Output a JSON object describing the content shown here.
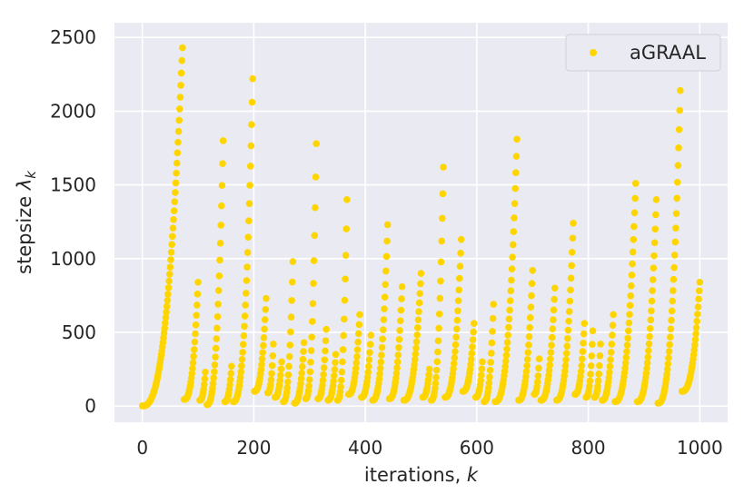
{
  "chart_data": {
    "type": "scatter",
    "xlabel": "iterations, k",
    "ylabel": "stepsize λk",
    "xlim": [
      -50,
      1050
    ],
    "ylim": [
      -110,
      2600
    ],
    "x_ticks": [
      0,
      200,
      400,
      600,
      800,
      1000
    ],
    "y_ticks": [
      0,
      500,
      1000,
      1500,
      2000,
      2500
    ],
    "grid": true,
    "legend_position": "top-right",
    "colors": {
      "series": "#FFD500",
      "background": "#EAEAF2",
      "grid": "#ffffff"
    },
    "series": [
      {
        "name": "aGRAAL",
        "marker": "circle",
        "cycles": [
          {
            "start": 0,
            "peak": 72,
            "ymax": 2430,
            "floor": 1
          },
          {
            "start": 75,
            "peak": 100,
            "ymax": 840,
            "floor": 45
          },
          {
            "start": 103,
            "peak": 113,
            "ymax": 230,
            "floor": 40
          },
          {
            "start": 116,
            "peak": 145,
            "ymax": 1800,
            "floor": 10
          },
          {
            "start": 148,
            "peak": 160,
            "ymax": 270,
            "floor": 30
          },
          {
            "start": 163,
            "peak": 198,
            "ymax": 2220,
            "floor": 30
          },
          {
            "start": 201,
            "peak": 222,
            "ymax": 730,
            "floor": 100
          },
          {
            "start": 225,
            "peak": 235,
            "ymax": 420,
            "floor": 90
          },
          {
            "start": 238,
            "peak": 250,
            "ymax": 300,
            "floor": 60
          },
          {
            "start": 253,
            "peak": 270,
            "ymax": 980,
            "floor": 30
          },
          {
            "start": 273,
            "peak": 290,
            "ymax": 430,
            "floor": 20
          },
          {
            "start": 293,
            "peak": 312,
            "ymax": 1780,
            "floor": 50
          },
          {
            "start": 315,
            "peak": 330,
            "ymax": 520,
            "floor": 50
          },
          {
            "start": 333,
            "peak": 347,
            "ymax": 350,
            "floor": 40
          },
          {
            "start": 350,
            "peak": 367,
            "ymax": 1400,
            "floor": 40
          },
          {
            "start": 370,
            "peak": 390,
            "ymax": 620,
            "floor": 80
          },
          {
            "start": 393,
            "peak": 410,
            "ymax": 480,
            "floor": 60
          },
          {
            "start": 413,
            "peak": 440,
            "ymax": 1230,
            "floor": 40
          },
          {
            "start": 443,
            "peak": 466,
            "ymax": 810,
            "floor": 50
          },
          {
            "start": 469,
            "peak": 500,
            "ymax": 900,
            "floor": 40
          },
          {
            "start": 503,
            "peak": 515,
            "ymax": 250,
            "floor": 60
          },
          {
            "start": 518,
            "peak": 540,
            "ymax": 1620,
            "floor": 40
          },
          {
            "start": 543,
            "peak": 572,
            "ymax": 1130,
            "floor": 60
          },
          {
            "start": 575,
            "peak": 595,
            "ymax": 560,
            "floor": 100
          },
          {
            "start": 598,
            "peak": 610,
            "ymax": 300,
            "floor": 60
          },
          {
            "start": 613,
            "peak": 630,
            "ymax": 690,
            "floor": 30
          },
          {
            "start": 633,
            "peak": 672,
            "ymax": 1810,
            "floor": 30
          },
          {
            "start": 675,
            "peak": 700,
            "ymax": 920,
            "floor": 40
          },
          {
            "start": 703,
            "peak": 712,
            "ymax": 320,
            "floor": 80
          },
          {
            "start": 715,
            "peak": 740,
            "ymax": 800,
            "floor": 40
          },
          {
            "start": 743,
            "peak": 773,
            "ymax": 1240,
            "floor": 40
          },
          {
            "start": 776,
            "peak": 793,
            "ymax": 560,
            "floor": 80
          },
          {
            "start": 796,
            "peak": 808,
            "ymax": 510,
            "floor": 60
          },
          {
            "start": 811,
            "peak": 822,
            "ymax": 420,
            "floor": 60
          },
          {
            "start": 825,
            "peak": 845,
            "ymax": 620,
            "floor": 40
          },
          {
            "start": 848,
            "peak": 885,
            "ymax": 1510,
            "floor": 30
          },
          {
            "start": 888,
            "peak": 922,
            "ymax": 1400,
            "floor": 30
          },
          {
            "start": 925,
            "peak": 965,
            "ymax": 2140,
            "floor": 20
          },
          {
            "start": 968,
            "peak": 1000,
            "ymax": 840,
            "floor": 100
          }
        ]
      }
    ]
  }
}
